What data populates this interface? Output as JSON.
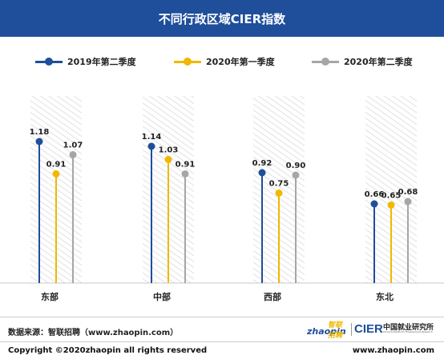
{
  "header": {
    "title": "不同行政区域CIER指数"
  },
  "colors": {
    "header_bg": "#1f4e9b",
    "series_2019q2": "#1f4e9b",
    "series_2020q1": "#f0b800",
    "series_2020q2": "#a6a6a6"
  },
  "chart_data": {
    "type": "bar",
    "title": "不同行政区域CIER指数",
    "categories": [
      "东部",
      "中部",
      "西部",
      "东北"
    ],
    "series": [
      {
        "name": "2019年第二季度",
        "values": [
          1.18,
          1.14,
          0.92,
          0.66
        ],
        "color": "#1f4e9b"
      },
      {
        "name": "2020年第一季度",
        "values": [
          0.91,
          1.03,
          0.75,
          0.65
        ],
        "color": "#f0b800"
      },
      {
        "name": "2020年第二季度",
        "values": [
          1.07,
          0.91,
          0.9,
          0.68
        ],
        "color": "#a6a6a6"
      }
    ],
    "ylim": [
      0,
      1.4
    ],
    "grid": false,
    "legend": "top",
    "style": "lollipop"
  },
  "footer": {
    "source": "数据来源：智联招聘（www.zhaopin.com）",
    "copyright": "Copyright ©2020zhaopin all rights reserved",
    "url": "www.zhaopin.com"
  },
  "logos": {
    "zhaopin_text": "zhaopin",
    "zhaopin_cn": "智联招聘",
    "cier_text": "CIER",
    "cier_cn": "中国就业研究所",
    "cier_en": "China Institute for Employment Research"
  }
}
